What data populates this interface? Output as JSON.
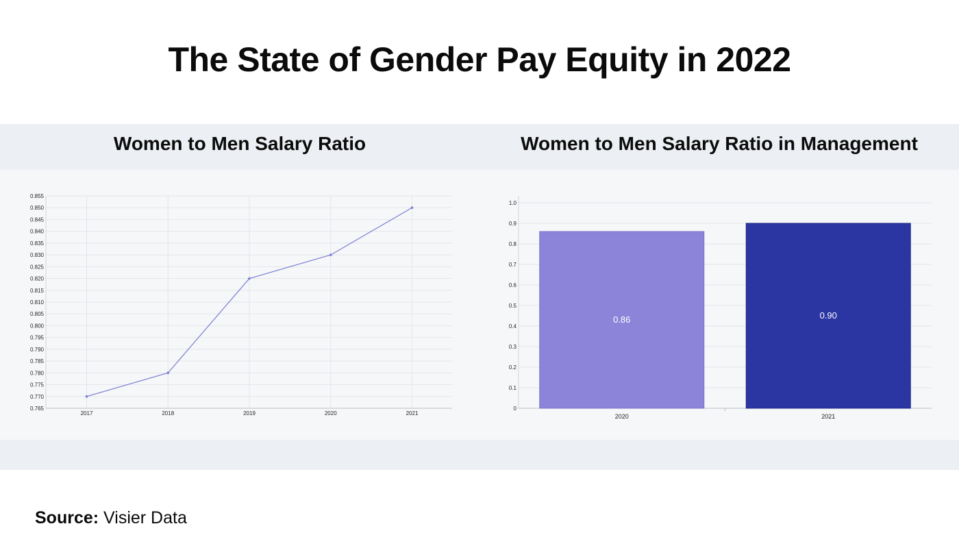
{
  "title": "The State of Gender Pay Equity in 2022",
  "source": {
    "label": "Source:",
    "value": "Visier Data"
  },
  "colors": {
    "line": "#7b7fd0",
    "bar_2020": "#8b84d8",
    "bar_2021": "#2b36a3",
    "band_dark": "#eceff3",
    "band_light": "#f6f7f9"
  },
  "chart_data": [
    {
      "type": "line",
      "title": "Women to Men Salary Ratio",
      "x": [
        "2017",
        "2018",
        "2019",
        "2020",
        "2021"
      ],
      "series": [
        {
          "values": [
            0.77,
            0.78,
            0.82,
            0.83,
            0.85
          ]
        }
      ],
      "ylim": [
        0.765,
        0.855
      ],
      "yticks": [
        "0.765",
        "0.770",
        "0.775",
        "0.780",
        "0.785",
        "0.790",
        "0.795",
        "0.800",
        "0.805",
        "0.810",
        "0.815",
        "0.820",
        "0.825",
        "0.830",
        "0.835",
        "0.840",
        "0.845",
        "0.850",
        "0.855"
      ],
      "grid": true
    },
    {
      "type": "bar",
      "title": "Women to Men Salary Ratio in Management",
      "categories": [
        "2020",
        "2021"
      ],
      "values": [
        0.86,
        0.9
      ],
      "data_labels": [
        "0.86",
        "0.90"
      ],
      "ylim": [
        0,
        1.0
      ],
      "yticks": [
        "0",
        "0.1",
        "0.2",
        "0.3",
        "0.4",
        "0.5",
        "0.6",
        "0.7",
        "0.8",
        "0.9",
        "1.0"
      ],
      "grid": true
    }
  ]
}
